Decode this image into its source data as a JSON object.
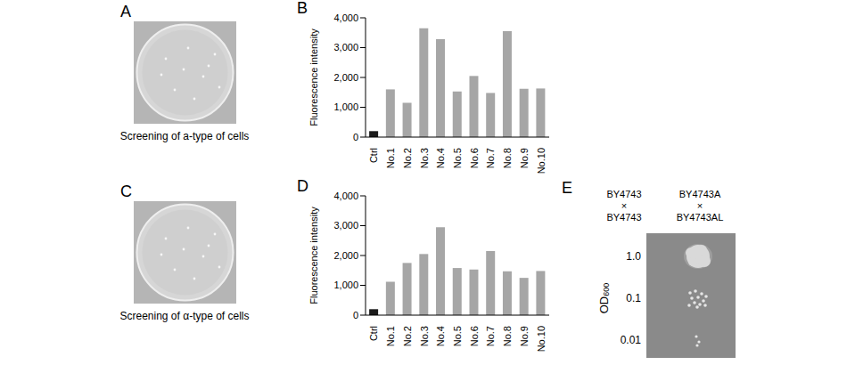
{
  "panel_letters": [
    "A",
    "B",
    "C",
    "D",
    "E"
  ],
  "plates": [
    {
      "caption": "Screening of a-type of cells"
    },
    {
      "caption": "Screening of α-type of cells"
    }
  ],
  "chart_data": [
    {
      "type": "bar",
      "categories": [
        "Ctrl",
        "No.1",
        "No.2",
        "No.3",
        "No.4",
        "No.5",
        "No.6",
        "No.7",
        "No.8",
        "No.9",
        "No.10"
      ],
      "values": [
        200,
        1600,
        1150,
        3650,
        3280,
        1530,
        2050,
        1480,
        3550,
        1620,
        1630
      ],
      "colors": [
        "#1a1a1a",
        "#a6a6a6",
        "#a6a6a6",
        "#a6a6a6",
        "#a6a6a6",
        "#a6a6a6",
        "#a6a6a6",
        "#a6a6a6",
        "#a6a6a6",
        "#a6a6a6",
        "#a6a6a6"
      ],
      "y_label": "Fluorescence intensity",
      "ylim": [
        0,
        4000
      ],
      "yticks": [
        0,
        {
          "value": 1000,
          "label": "1,000"
        },
        {
          "value": 2000,
          "label": "2,000"
        },
        {
          "value": 3000,
          "label": "3,000"
        },
        {
          "value": 4000,
          "label": "4,000"
        }
      ]
    },
    {
      "type": "bar",
      "categories": [
        "Ctrl",
        "No.1",
        "No.2",
        "No.3",
        "No.4",
        "No.5",
        "No.6",
        "No.7",
        "No.8",
        "No.9",
        "No.10"
      ],
      "values": [
        200,
        1120,
        1750,
        2050,
        2950,
        1580,
        1530,
        2150,
        1470,
        1250,
        1480
      ],
      "colors": [
        "#1a1a1a",
        "#a6a6a6",
        "#a6a6a6",
        "#a6a6a6",
        "#a6a6a6",
        "#a6a6a6",
        "#a6a6a6",
        "#a6a6a6",
        "#a6a6a6",
        "#a6a6a6",
        "#a6a6a6"
      ],
      "y_label": "Fluorescence intensity",
      "ylim": [
        0,
        4000
      ],
      "yticks": [
        0,
        {
          "value": 1000,
          "label": "1,000"
        },
        {
          "value": 2000,
          "label": "2,000"
        },
        {
          "value": 3000,
          "label": "3,000"
        },
        {
          "value": 4000,
          "label": "4,000"
        }
      ]
    }
  ],
  "mating_assay": {
    "crosses": [
      [
        "BY4743",
        "×",
        "BY4743"
      ],
      [
        "BY4743A",
        "×",
        "BY4743AL"
      ]
    ],
    "axis_label": {
      "text": "OD",
      "subscript": "600"
    },
    "rows": [
      {
        "value": 1,
        "label": "1.0"
      },
      {
        "value": 0.1,
        "label": "0.1"
      },
      {
        "value": 0.01,
        "label": "0.01"
      }
    ]
  }
}
